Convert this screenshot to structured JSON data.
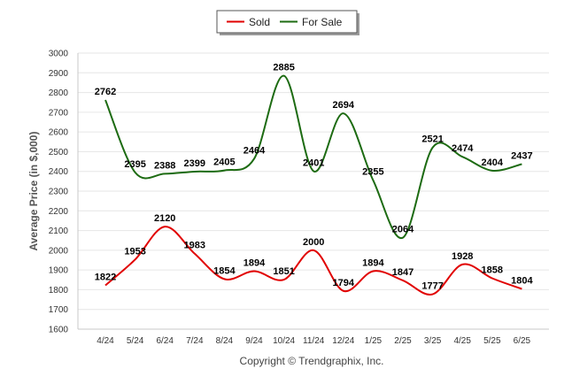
{
  "chart_data": {
    "type": "line",
    "categories": [
      "4/24",
      "5/24",
      "6/24",
      "7/24",
      "8/24",
      "9/24",
      "10/24",
      "11/24",
      "12/24",
      "1/25",
      "2/25",
      "3/25",
      "4/25",
      "5/25",
      "6/25"
    ],
    "series": [
      {
        "name": "Sold",
        "color": "#e10000",
        "values": [
          1822,
          1953,
          2120,
          1983,
          1854,
          1894,
          1851,
          2000,
          1794,
          1894,
          1847,
          1777,
          1928,
          1858,
          1804
        ]
      },
      {
        "name": "For Sale",
        "color": "#1d6b12",
        "values": [
          2762,
          2395,
          2388,
          2399,
          2405,
          2464,
          2885,
          2401,
          2694,
          2355,
          2064,
          2521,
          2474,
          2404,
          2437
        ]
      }
    ],
    "ylabel": "Average Price (in $,000)",
    "yticks": [
      1600,
      1700,
      1800,
      1900,
      2000,
      2100,
      2200,
      2300,
      2400,
      2500,
      2600,
      2700,
      2800,
      2900,
      3000
    ],
    "ylim": [
      1600,
      3000
    ],
    "grid": true,
    "legend_position": "top-center"
  },
  "footer": {
    "copyright": "Copyright © Trendgraphix, Inc."
  }
}
